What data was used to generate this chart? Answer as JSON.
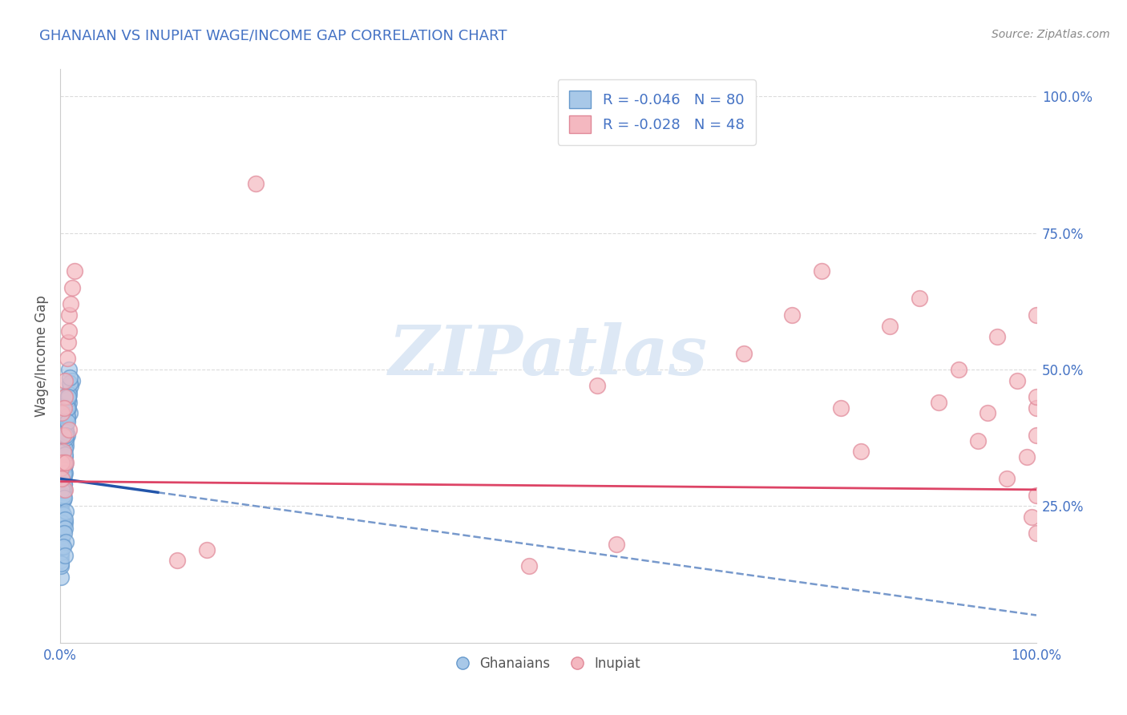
{
  "title": "GHANAIAN VS INUPIAT WAGE/INCOME GAP CORRELATION CHART",
  "source_text": "Source: ZipAtlas.com",
  "ylabel": "Wage/Income Gap",
  "xlim": [
    0,
    100
  ],
  "ylim": [
    0,
    105
  ],
  "xticks": [
    0,
    25,
    50,
    75,
    100
  ],
  "xticklabels": [
    "0.0%",
    "",
    "",
    "",
    "100.0%"
  ],
  "yticks": [
    25,
    50,
    75,
    100
  ],
  "yticklabels": [
    "25.0%",
    "50.0%",
    "75.0%",
    "100.0%"
  ],
  "ghanaian_color": "#a8c8e8",
  "inupiat_color": "#f4b8c0",
  "ghanaian_edge": "#6699cc",
  "inupiat_edge": "#e08898",
  "r_ghanaian": -0.046,
  "n_ghanaian": 80,
  "r_inupiat": -0.028,
  "n_inupiat": 48,
  "trend_ghanaian_solid_color": "#2255aa",
  "trend_ghanaian_dash_color": "#7799cc",
  "trend_inupiat_color": "#dd4466",
  "background_color": "#ffffff",
  "plot_bg_color": "#ffffff",
  "grid_color": "#cccccc",
  "title_color": "#4472c4",
  "axis_tick_color": "#4472c4",
  "legend_text_color": "#4472c4",
  "watermark_color": "#dde8f5",
  "ghanaian_points": [
    [
      0.2,
      28.5
    ],
    [
      0.4,
      32.0
    ],
    [
      0.3,
      35.0
    ],
    [
      0.6,
      40.0
    ],
    [
      0.5,
      22.0
    ],
    [
      0.2,
      18.0
    ],
    [
      0.8,
      45.0
    ],
    [
      0.7,
      38.0
    ],
    [
      1.0,
      42.0
    ],
    [
      0.1,
      25.0
    ],
    [
      0.3,
      30.0
    ],
    [
      0.3,
      27.0
    ],
    [
      0.9,
      50.0
    ],
    [
      0.5,
      33.0
    ],
    [
      0.2,
      20.0
    ],
    [
      0.6,
      36.0
    ],
    [
      0.9,
      44.0
    ],
    [
      0.3,
      23.0
    ],
    [
      0.4,
      29.0
    ],
    [
      0.1,
      17.0
    ],
    [
      0.7,
      41.0
    ],
    [
      0.5,
      34.0
    ],
    [
      0.1,
      15.0
    ],
    [
      1.2,
      48.0
    ],
    [
      0.6,
      37.0
    ],
    [
      0.05,
      12.0
    ],
    [
      0.8,
      43.0
    ],
    [
      0.3,
      26.0
    ],
    [
      0.3,
      21.0
    ],
    [
      0.5,
      31.0
    ],
    [
      0.2,
      24.0
    ],
    [
      0.9,
      46.0
    ],
    [
      0.4,
      28.0
    ],
    [
      0.2,
      19.0
    ],
    [
      0.6,
      39.0
    ],
    [
      1.1,
      47.0
    ],
    [
      0.3,
      22.5
    ],
    [
      0.3,
      27.5
    ],
    [
      0.8,
      44.5
    ],
    [
      0.1,
      16.0
    ],
    [
      0.5,
      35.5
    ],
    [
      0.2,
      21.5
    ],
    [
      0.7,
      41.5
    ],
    [
      0.4,
      30.5
    ],
    [
      0.1,
      18.5
    ],
    [
      0.6,
      38.5
    ],
    [
      0.1,
      14.0
    ],
    [
      0.9,
      45.5
    ],
    [
      0.3,
      26.5
    ],
    [
      0.3,
      22.0
    ],
    [
      0.5,
      32.5
    ],
    [
      0.2,
      20.5
    ],
    [
      1.0,
      47.5
    ],
    [
      0.4,
      29.0
    ],
    [
      0.2,
      19.5
    ],
    [
      0.6,
      37.5
    ],
    [
      1.0,
      48.5
    ],
    [
      0.3,
      23.5
    ],
    [
      0.3,
      28.0
    ],
    [
      0.7,
      43.0
    ],
    [
      0.1,
      16.5
    ],
    [
      0.5,
      34.5
    ],
    [
      0.2,
      22.0
    ],
    [
      0.7,
      40.5
    ],
    [
      0.4,
      31.0
    ],
    [
      0.1,
      17.5
    ],
    [
      0.6,
      38.0
    ],
    [
      0.1,
      14.5
    ],
    [
      0.8,
      45.0
    ],
    [
      0.3,
      27.0
    ],
    [
      0.3,
      21.0
    ],
    [
      0.2,
      28.0
    ],
    [
      0.4,
      26.5
    ],
    [
      0.6,
      24.0
    ],
    [
      0.5,
      22.5
    ],
    [
      0.5,
      21.0
    ],
    [
      0.4,
      20.0
    ],
    [
      0.6,
      18.5
    ],
    [
      0.3,
      17.5
    ],
    [
      0.5,
      16.0
    ]
  ],
  "inupiat_points": [
    [
      0.3,
      35.0
    ],
    [
      0.8,
      55.0
    ],
    [
      0.2,
      42.0
    ],
    [
      0.5,
      48.0
    ],
    [
      0.9,
      60.0
    ],
    [
      0.3,
      38.0
    ],
    [
      1.2,
      65.0
    ],
    [
      0.5,
      45.0
    ],
    [
      0.7,
      52.0
    ],
    [
      0.1,
      32.0
    ],
    [
      0.4,
      33.0
    ],
    [
      0.9,
      39.0
    ],
    [
      1.1,
      62.0
    ],
    [
      0.4,
      43.0
    ],
    [
      0.2,
      33.0
    ],
    [
      0.9,
      57.0
    ],
    [
      1.5,
      68.0
    ],
    [
      15.0,
      17.0
    ],
    [
      12.0,
      15.0
    ],
    [
      20.0,
      84.0
    ],
    [
      48.0,
      14.0
    ],
    [
      57.0,
      18.0
    ],
    [
      55.0,
      47.0
    ],
    [
      70.0,
      53.0
    ],
    [
      75.0,
      60.0
    ],
    [
      78.0,
      68.0
    ],
    [
      80.0,
      43.0
    ],
    [
      82.0,
      35.0
    ],
    [
      85.0,
      58.0
    ],
    [
      88.0,
      63.0
    ],
    [
      90.0,
      44.0
    ],
    [
      92.0,
      50.0
    ],
    [
      94.0,
      37.0
    ],
    [
      95.0,
      42.0
    ],
    [
      96.0,
      56.0
    ],
    [
      97.0,
      30.0
    ],
    [
      98.0,
      48.0
    ],
    [
      99.0,
      34.0
    ],
    [
      99.5,
      23.0
    ],
    [
      100.0,
      38.0
    ],
    [
      100.0,
      27.0
    ],
    [
      100.0,
      43.0
    ],
    [
      100.0,
      20.0
    ],
    [
      100.0,
      45.0
    ],
    [
      100.0,
      60.0
    ],
    [
      0.5,
      28.0
    ],
    [
      0.6,
      33.0
    ],
    [
      0.2,
      30.0
    ]
  ],
  "gh_trend_x0": 0,
  "gh_trend_y0": 30.0,
  "gh_trend_x1": 10,
  "gh_trend_y1": 27.5,
  "gh_trend_dash_x0": 10,
  "gh_trend_dash_y0": 27.5,
  "gh_trend_dash_x1": 100,
  "gh_trend_dash_y1": 5.0,
  "in_trend_x0": 0,
  "in_trend_y0": 29.5,
  "in_trend_x1": 100,
  "in_trend_y1": 28.0
}
